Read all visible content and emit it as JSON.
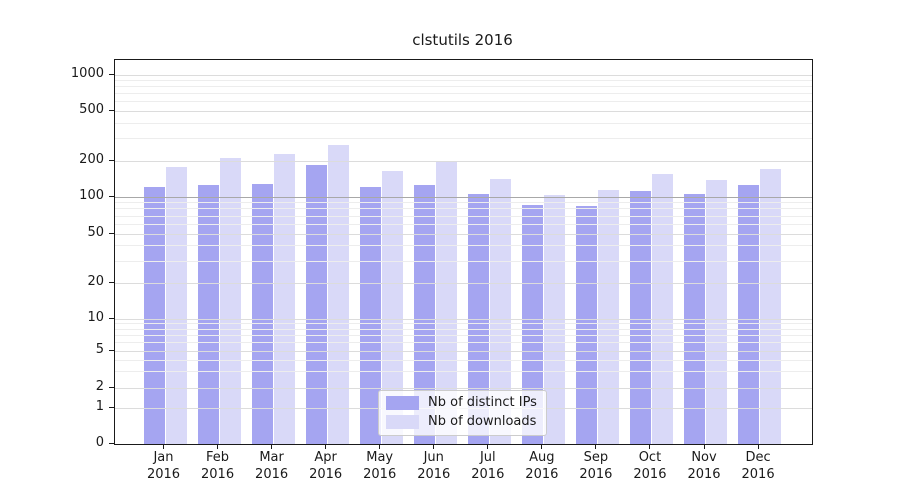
{
  "title": "clstutils 2016",
  "chart_data": {
    "type": "bar",
    "title": "clstutils 2016",
    "categories": [
      "Jan 2016",
      "Feb 2016",
      "Mar 2016",
      "Apr 2016",
      "May 2016",
      "Jun 2016",
      "Jul 2016",
      "Aug 2016",
      "Sep 2016",
      "Oct 2016",
      "Nov 2016",
      "Dec 2016"
    ],
    "series": [
      {
        "name": "Nb of distinct IPs",
        "color": "#a5a5f1",
        "values": [
          122,
          127,
          129,
          185,
          121,
          126,
          105,
          86,
          85,
          112,
          105,
          127
        ]
      },
      {
        "name": "Nb of downloads",
        "color": "#d9d9f8",
        "values": [
          177,
          212,
          228,
          270,
          165,
          196,
          142,
          103,
          115,
          156,
          140,
          170
        ]
      }
    ],
    "xlabel": "",
    "ylabel": "",
    "yscale": "symlog",
    "ytick_values": [
      0,
      1,
      2,
      5,
      10,
      20,
      50,
      100,
      200,
      500,
      1000
    ],
    "ylim": [
      0,
      1200
    ],
    "grid": true,
    "legend_position": "lower center"
  },
  "legend": {
    "entries": [
      "Nb of distinct IPs",
      "Nb of downloads"
    ]
  },
  "colors": {
    "bar_dark": "#a5a5f1",
    "bar_light": "#d9d9f8",
    "grid_major": "#dcdcdc",
    "grid_minor": "#ededed",
    "grid_emphasis": "#a8a8a8",
    "spine": "#1a1a1a",
    "text": "#1a1a1a",
    "legend_border": "#cccccc",
    "background": "#ffffff"
  }
}
